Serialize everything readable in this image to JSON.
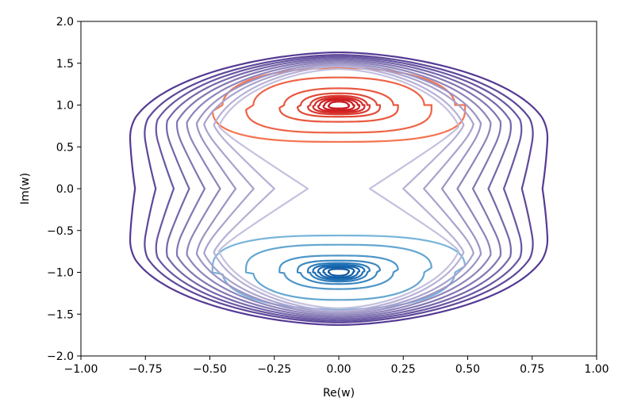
{
  "chart_data": {
    "type": "contour",
    "title": "",
    "xlabel": "Re(w)",
    "ylabel": "Im(w)",
    "xlim": [
      -1.0,
      1.0
    ],
    "ylim": [
      -2.0,
      2.0
    ],
    "grid": false,
    "legend": "none",
    "xticks": [
      "−1.00",
      "−0.75",
      "−0.50",
      "−0.25",
      "0.00",
      "0.25",
      "0.50",
      "0.75",
      "1.00"
    ],
    "yticks": [
      "2.0",
      "1.5",
      "1.0",
      "0.5",
      "0.0",
      "−0.5",
      "−1.0",
      "−1.5",
      "−2.0"
    ],
    "xtick_values": [
      -1.0,
      -0.75,
      -0.5,
      -0.25,
      0.0,
      0.25,
      0.5,
      0.75,
      1.0
    ],
    "ytick_values": [
      2.0,
      1.5,
      1.0,
      0.5,
      0.0,
      -0.5,
      -1.0,
      -1.5,
      -2.0
    ],
    "families": [
      {
        "name": "upper",
        "color": "#d6101a",
        "center": [
          0.0,
          1.0
        ],
        "curves": [
          {
            "rx": 0.04,
            "ry": 0.04,
            "color": "#c8151d"
          },
          {
            "rx": 0.06,
            "ry": 0.06,
            "color": "#cc1a20"
          },
          {
            "rx": 0.08,
            "ry": 0.075,
            "color": "#d02024"
          },
          {
            "rx": 0.1,
            "ry": 0.09,
            "color": "#d42a28"
          },
          {
            "rx": 0.12,
            "ry": 0.11,
            "color": "#d83a30"
          },
          {
            "rx": 0.16,
            "ry": 0.14,
            "color": "#e04a38"
          },
          {
            "rx": 0.23,
            "ry": 0.2,
            "color": "#e8583f"
          },
          {
            "rx": 0.36,
            "ry": 0.33,
            "color": "#ee6447"
          },
          {
            "rx": 0.49,
            "ry": 0.44,
            "color": "#f4744f"
          }
        ]
      },
      {
        "name": "lower",
        "color": "#1060b0",
        "center": [
          0.0,
          -1.0
        ],
        "curves": [
          {
            "rx": 0.04,
            "ry": 0.04,
            "color": "#0c56a0"
          },
          {
            "rx": 0.06,
            "ry": 0.06,
            "color": "#105ea8"
          },
          {
            "rx": 0.08,
            "ry": 0.075,
            "color": "#1666ae"
          },
          {
            "rx": 0.1,
            "ry": 0.09,
            "color": "#206fb4"
          },
          {
            "rx": 0.12,
            "ry": 0.11,
            "color": "#2e7cba"
          },
          {
            "rx": 0.16,
            "ry": 0.14,
            "color": "#3d88c0"
          },
          {
            "rx": 0.23,
            "ry": 0.2,
            "color": "#4e96c8"
          },
          {
            "rx": 0.36,
            "ry": 0.33,
            "color": "#63a6d0"
          },
          {
            "rx": 0.49,
            "ry": 0.44,
            "color": "#78b4da"
          }
        ]
      },
      {
        "name": "outer",
        "color": "#5b3d98",
        "curves": [
          {
            "waist": 0.12,
            "lobe": 0.49,
            "top": 1.43,
            "color": "#c4c0de"
          },
          {
            "waist": 0.25,
            "lobe": 0.51,
            "top": 1.46,
            "color": "#b6b0d6"
          },
          {
            "waist": 0.33,
            "lobe": 0.55,
            "top": 1.48,
            "color": "#a9a2cd"
          },
          {
            "waist": 0.4,
            "lobe": 0.58,
            "top": 1.5,
            "color": "#9c93c4"
          },
          {
            "waist": 0.46,
            "lobe": 0.62,
            "top": 1.52,
            "color": "#8f84bb"
          },
          {
            "waist": 0.52,
            "lobe": 0.66,
            "top": 1.54,
            "color": "#8275b2"
          },
          {
            "waist": 0.58,
            "lobe": 0.7,
            "top": 1.56,
            "color": "#7566aa"
          },
          {
            "waist": 0.64,
            "lobe": 0.74,
            "top": 1.58,
            "color": "#6956a2"
          },
          {
            "waist": 0.71,
            "lobe": 0.78,
            "top": 1.6,
            "color": "#5e489a"
          },
          {
            "waist": 0.79,
            "lobe": 0.83,
            "top": 1.63,
            "color": "#553a94"
          }
        ]
      }
    ]
  }
}
